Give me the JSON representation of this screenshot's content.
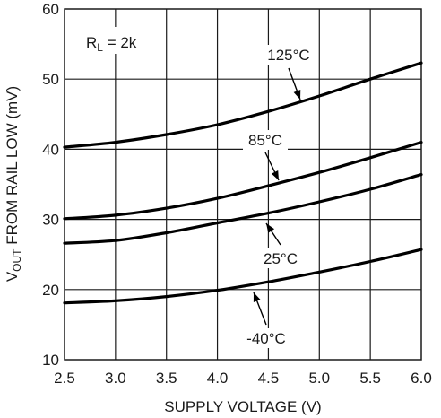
{
  "chart_data": {
    "type": "line",
    "xlabel": "SUPPLY VOLTAGE (V)",
    "ylabel_main": "V",
    "ylabel_sub": "OUT",
    "ylabel_rest": " FROM RAIL LOW (mV)",
    "xlim": [
      2.5,
      6.0
    ],
    "ylim": [
      10,
      60
    ],
    "x_ticks": [
      "2.5",
      "3.0",
      "3.5",
      "4.0",
      "4.5",
      "5.0",
      "5.5",
      "6.0"
    ],
    "y_ticks": [
      "10",
      "20",
      "30",
      "40",
      "50",
      "60"
    ],
    "grid": true,
    "x": [
      2.5,
      3.0,
      3.5,
      4.0,
      4.5,
      5.0,
      5.5,
      6.0
    ],
    "series": [
      {
        "name": "125°C",
        "values": [
          40.3,
          41.0,
          42.1,
          43.5,
          45.4,
          47.6,
          50.0,
          52.3
        ]
      },
      {
        "name": "85°C",
        "values": [
          30.1,
          30.6,
          31.6,
          33.0,
          34.8,
          36.7,
          38.8,
          41.0
        ]
      },
      {
        "name": "25°C",
        "values": [
          26.6,
          27.0,
          28.1,
          29.5,
          30.9,
          32.5,
          34.3,
          36.4
        ]
      },
      {
        "name": "-40°C",
        "values": [
          18.1,
          18.4,
          19.0,
          19.9,
          21.1,
          22.5,
          24.0,
          25.7
        ]
      }
    ],
    "annotations": {
      "rl_main": "R",
      "rl_sub": "L",
      "rl_rest": " = 2k"
    }
  }
}
